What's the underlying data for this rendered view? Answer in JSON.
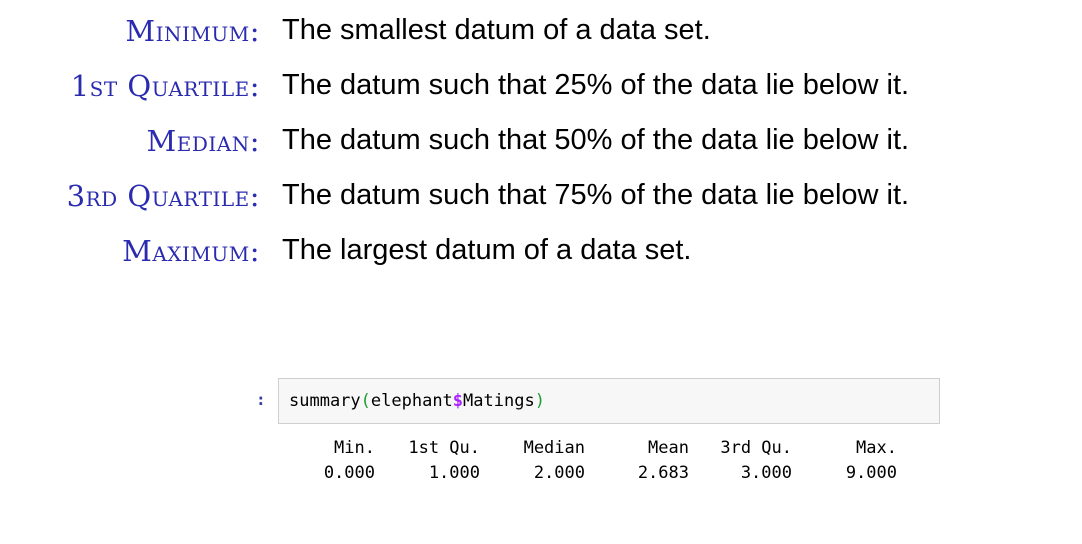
{
  "definitions": [
    {
      "term": "Minimum:",
      "text": "The smallest datum of a data set."
    },
    {
      "term": "1st Quartile:",
      "text": "The datum such that 25% of the data lie below it."
    },
    {
      "term": "Median:",
      "text": "The datum such that 50% of the data lie below it."
    },
    {
      "term": "3rd Quartile:",
      "text": "The datum such that 75% of the data lie below it."
    },
    {
      "term": "Maximum:",
      "text": "The largest datum of a data set."
    }
  ],
  "cell": {
    "prompt": ":",
    "code": {
      "func": "summary",
      "open_paren": "(",
      "arg_obj": "elephant",
      "dollar": "$",
      "arg_field": "Matings",
      "close_paren": ")"
    },
    "output": {
      "headers": [
        "Min.",
        "1st Qu.",
        "Median",
        "Mean",
        "3rd Qu.",
        "Max."
      ],
      "values": [
        "0.000",
        "1.000",
        "2.000",
        "2.683",
        "3.000",
        "9.000"
      ]
    }
  }
}
